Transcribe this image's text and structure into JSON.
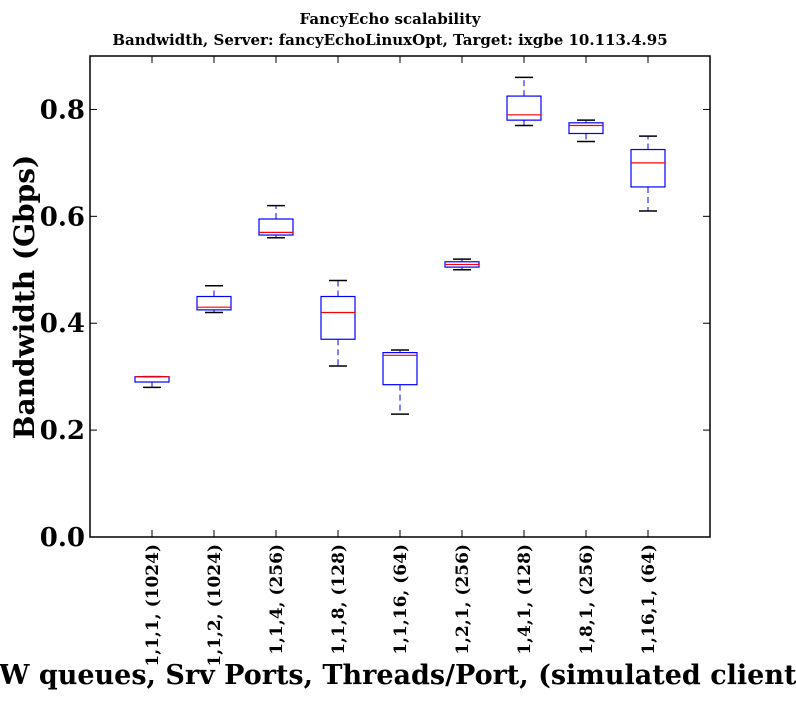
{
  "chart_data": {
    "type": "box",
    "title": "FancyEcho scalability",
    "subtitle": "Bandwidth, Server: fancyEchoLinuxOpt, Target: ixgbe 10.113.4.95",
    "xlabel": "HW queues, Srv Ports, Threads/Port, (simulated clients)",
    "ylabel": "Bandwidth (Gbps)",
    "ylim": [
      0.0,
      0.9
    ],
    "yticks": [
      "0.0",
      "0.2",
      "0.4",
      "0.6",
      "0.8"
    ],
    "grid": false,
    "categories": [
      "1,1,1, (1024)",
      "1,1,2, (1024)",
      "1,1,4, (256)",
      "1,1,8, (128)",
      "1,1,16, (64)",
      "1,2,1, (256)",
      "1,4,1, (128)",
      "1,8,1, (256)",
      "1,16,1, (64)"
    ],
    "boxes": [
      {
        "min": 0.28,
        "q1": 0.29,
        "median": 0.3,
        "q3": 0.3,
        "max": 0.3
      },
      {
        "min": 0.42,
        "q1": 0.425,
        "median": 0.43,
        "q3": 0.45,
        "max": 0.47
      },
      {
        "min": 0.56,
        "q1": 0.565,
        "median": 0.57,
        "q3": 0.595,
        "max": 0.62
      },
      {
        "min": 0.32,
        "q1": 0.37,
        "median": 0.42,
        "q3": 0.45,
        "max": 0.48
      },
      {
        "min": 0.23,
        "q1": 0.285,
        "median": 0.34,
        "q3": 0.345,
        "max": 0.35
      },
      {
        "min": 0.5,
        "q1": 0.505,
        "median": 0.51,
        "q3": 0.515,
        "max": 0.52
      },
      {
        "min": 0.77,
        "q1": 0.78,
        "median": 0.79,
        "q3": 0.825,
        "max": 0.86
      },
      {
        "min": 0.74,
        "q1": 0.755,
        "median": 0.77,
        "q3": 0.775,
        "max": 0.78
      },
      {
        "min": 0.61,
        "q1": 0.655,
        "median": 0.7,
        "q3": 0.725,
        "max": 0.75
      }
    ],
    "colors": {
      "box": "#0000ff",
      "median": "#ff0000",
      "whisker": "#000000",
      "axes": "#000000"
    }
  }
}
